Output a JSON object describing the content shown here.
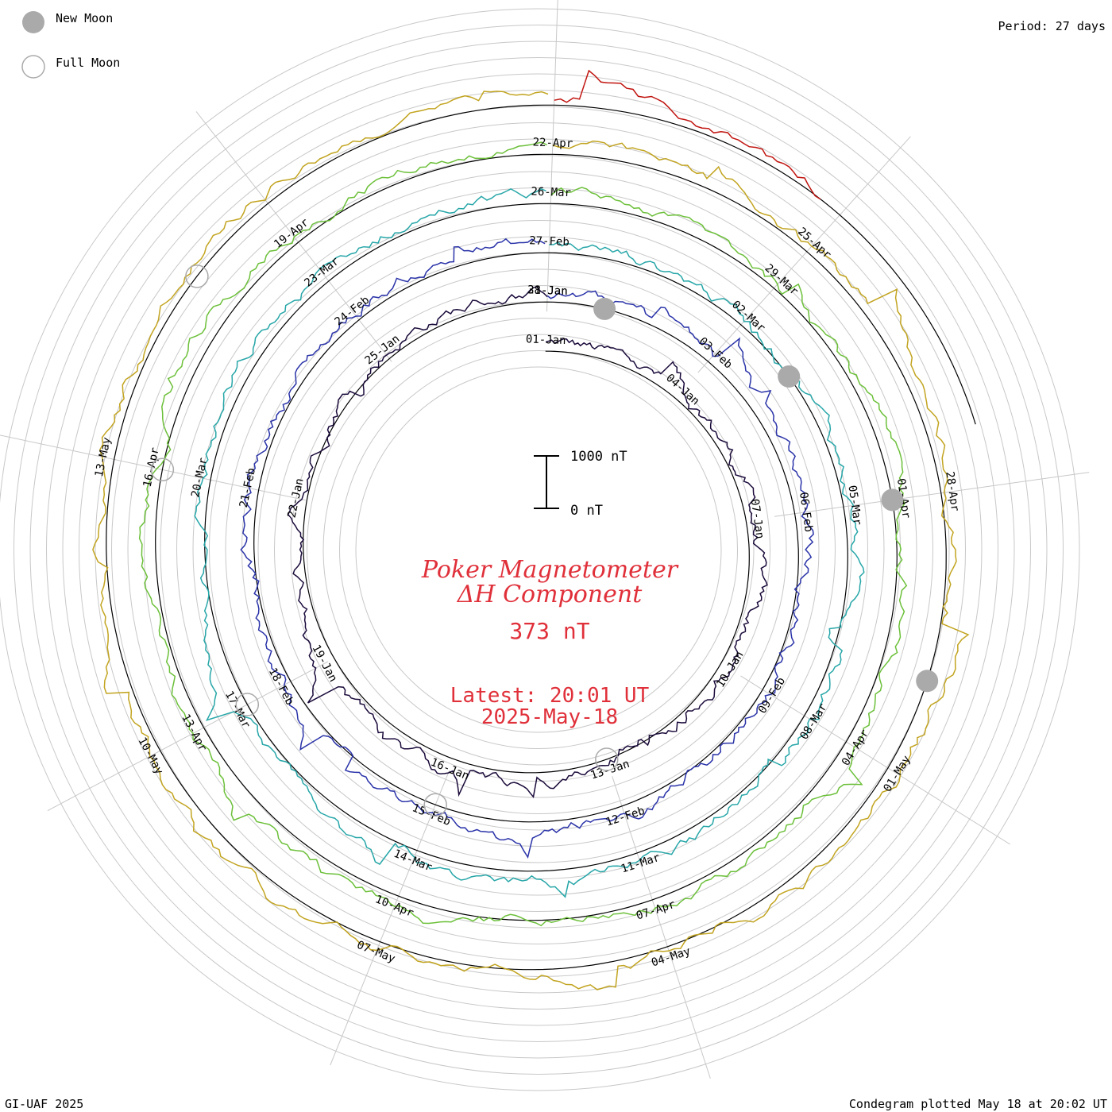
{
  "legend": {
    "new_moon_label": "New Moon",
    "full_moon_label": "Full Moon",
    "new_moon_color": "#aaaaaa",
    "full_moon_color": "#aaaaaa"
  },
  "header": {
    "period": "Period: 27 days"
  },
  "footer": {
    "credit": "GI-UAF 2025",
    "plotted": "Condegram plotted May 18 at 20:02 UT"
  },
  "center": {
    "title_line1": "Poker Magnetometer",
    "title_line2": "ΔH Component",
    "value": "373 nT",
    "latest_line1": "Latest: 20:01 UT",
    "latest_line2": "2025-May-18",
    "scale_top": "1000 nT",
    "scale_bottom": "0 nT",
    "text_color": "#e0303a"
  },
  "chart_data": {
    "type": "line",
    "form": "condegram spiral (polar, 27-day period)",
    "title": "Poker Magnetometer ΔH Component",
    "units": "nT",
    "scale_bar": [
      0,
      1000
    ],
    "period_days": 27,
    "latest_value": 373,
    "series": [
      {
        "name": "",
        "color": "#1a0a3a",
        "start_date": "2025-01-01",
        "date_labels": [
          "01-Jan",
          "04-Jan",
          "07-Jan",
          "10-Jan",
          "13-Jan",
          "16-Jan",
          "19-Jan",
          "22-Jan",
          "25-Jan",
          "28-Jan"
        ]
      },
      {
        "name": "",
        "color": "#2a33a8",
        "start_date": "2025-01-28",
        "date_labels": [
          "31-Jan",
          "03-Feb",
          "06-Feb",
          "09-Feb",
          "12-Feb",
          "15-Feb",
          "18-Feb",
          "21-Feb",
          "24-Feb"
        ]
      },
      {
        "name": "",
        "color": "#27a6a8",
        "start_date": "2025-02-24",
        "date_labels": [
          "27-Feb",
          "02-Mar",
          "05-Mar",
          "08-Mar",
          "11-Mar",
          "14-Mar",
          "17-Mar",
          "20-Mar",
          "23-Mar"
        ]
      },
      {
        "name": "",
        "color": "#6cc03a",
        "start_date": "2025-03-23",
        "date_labels": [
          "26-Mar",
          "29-Mar",
          "01-Apr",
          "04-Apr",
          "07-Apr",
          "10-Apr",
          "13-Apr",
          "16-Apr",
          "19-Apr"
        ]
      },
      {
        "name": "",
        "color": "#c2a420",
        "start_date": "2025-04-19",
        "date_labels": [
          "22-Apr",
          "25-Apr",
          "28-Apr",
          "01-May",
          "04-May",
          "07-May",
          "10-May",
          "13-May"
        ]
      },
      {
        "name": "",
        "color": "#c0140f",
        "start_date": "2025-05-16",
        "date_labels": []
      }
    ],
    "moon_phases": {
      "new": [
        "29-Jan",
        "28-Feb",
        "29-Mar",
        "27-Apr"
      ],
      "full": [
        "13-Jan",
        "12-Feb",
        "14-Mar",
        "13-Apr",
        "12-May"
      ]
    },
    "grid": true
  }
}
